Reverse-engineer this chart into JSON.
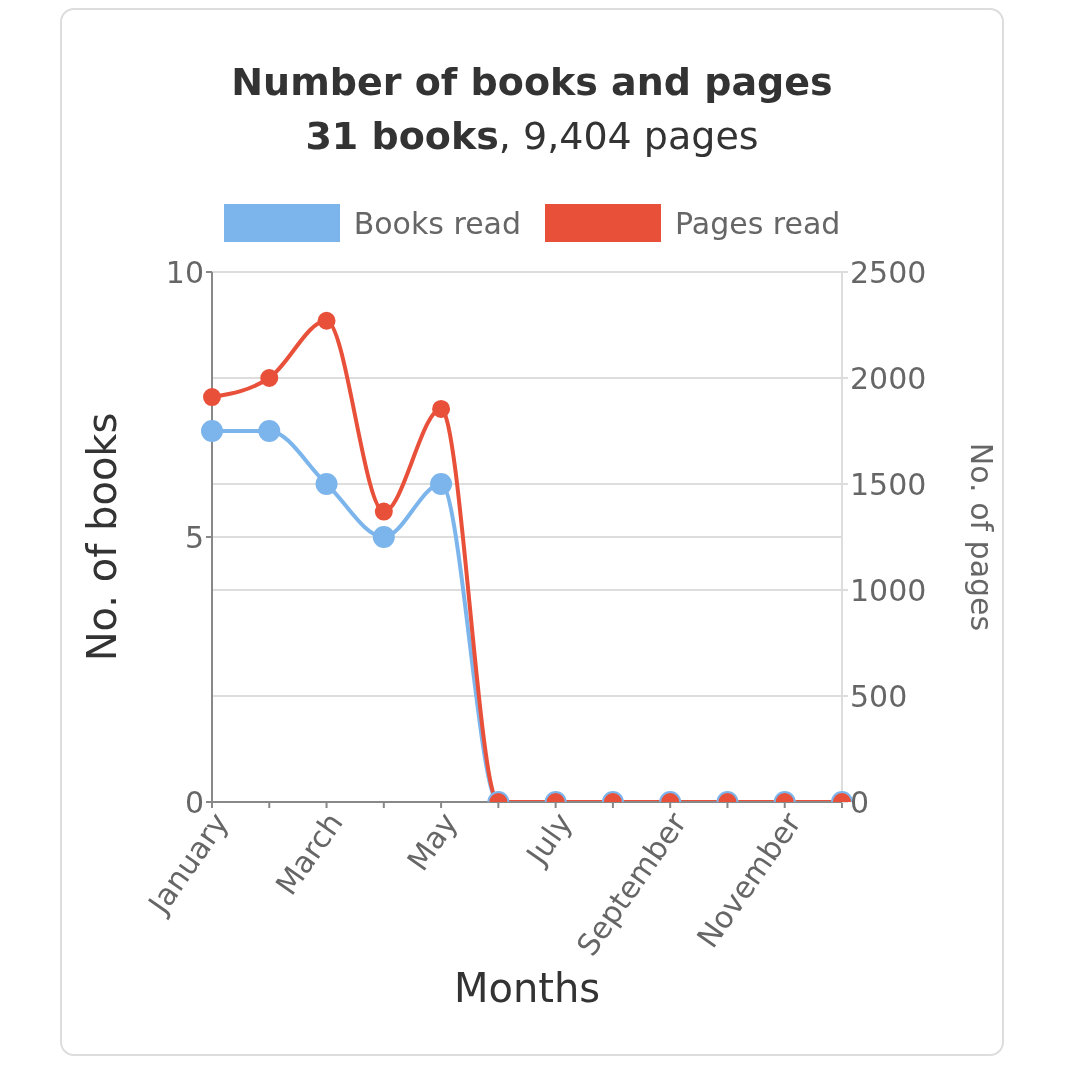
{
  "chart_data": {
    "type": "line",
    "title": "Number of books and pages",
    "subtitle": "31 books, 9,404 pages",
    "xlabel": "Months",
    "ylabel": "No. of books",
    "y2label": "No. of pages",
    "categories": [
      "January",
      null,
      "March",
      null,
      "May",
      null,
      "July",
      null,
      "September",
      null,
      "November",
      null
    ],
    "series": [
      {
        "name": "Books read",
        "color": "#7cb5ec",
        "values": [
          7,
          7,
          6,
          5,
          6,
          0,
          0,
          0,
          0,
          0,
          0,
          0
        ]
      },
      {
        "name": "Pages read",
        "color": "#e8503a",
        "axis": "y2",
        "values": [
          1910,
          2000,
          2270,
          1370,
          1854,
          0,
          0,
          0,
          0,
          0,
          0,
          0
        ]
      }
    ],
    "ylim": [
      0,
      10
    ],
    "yticks": [
      0,
      5,
      10
    ],
    "y2lim": [
      0,
      2500
    ],
    "y2ticks": [
      0,
      500,
      1000,
      1500,
      2000,
      2500
    ],
    "grid": "y",
    "legend": "top",
    "marker": "circle",
    "line_style": "solid"
  }
}
